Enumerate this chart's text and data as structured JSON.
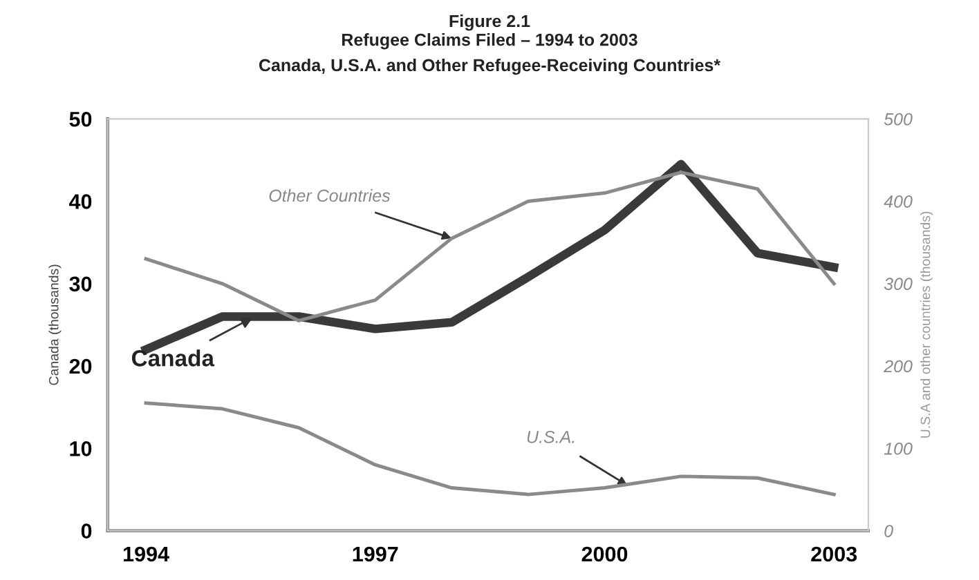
{
  "chart_data": {
    "type": "line",
    "title": "Figure 2.1\nRefugee Claims Filed – 1994 to 2003",
    "subtitle": "Canada, U.S.A. and Other Refugee-Receiving Countries*",
    "ylabel": "Canada (thousands)",
    "y2label": "U.S.A and other countries (thousands)",
    "x": [
      1994,
      1995,
      1996,
      1997,
      1998,
      1999,
      2000,
      2001,
      2002,
      2003
    ],
    "series": [
      {
        "color": "#3a3a3a",
        "values": [
          22,
          26,
          26,
          24.5,
          25.3,
          30.8,
          36.5,
          44.5,
          33.7,
          32
        ]
      },
      {
        "color": "#8a8a8a",
        "axis": "y2",
        "values": [
          330,
          300,
          255,
          280,
          355,
          400,
          410,
          435,
          415,
          300
        ]
      },
      {
        "color": "#8a8a8a",
        "axis": "y2",
        "values": [
          155,
          148,
          125,
          80,
          52,
          44,
          52,
          66,
          64,
          44
        ]
      }
    ],
    "annotations": [
      {
        "text": "Other Countries",
        "x": 1998,
        "y": 35.5
      },
      {
        "text": "Canada",
        "x": 1995.4,
        "y": 25.9
      },
      {
        "text": "U.S.A.",
        "x": 2000.3,
        "y": 5.5
      }
    ],
    "xlim": [
      1993.5,
      2003.45
    ],
    "xticks": [
      1994,
      1997,
      2000,
      2003
    ],
    "ylim": [
      0,
      50
    ],
    "yticks": [
      0,
      10,
      20,
      30,
      40,
      50
    ],
    "y2lim": [
      0,
      500
    ],
    "y2ticks": [
      0,
      100,
      200,
      300,
      400,
      500
    ],
    "grid": false,
    "legend": false,
    "marker": "none",
    "line_style": "solid"
  }
}
